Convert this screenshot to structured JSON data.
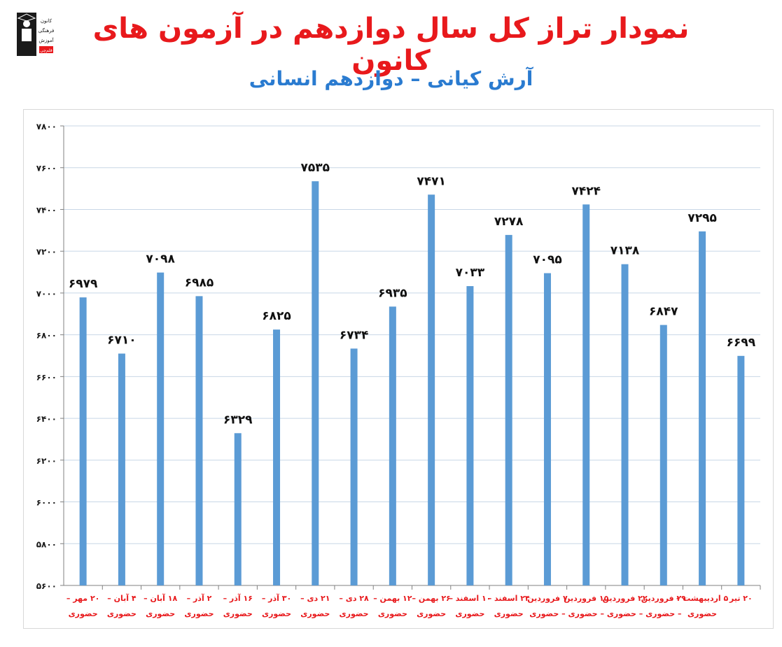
{
  "header": {
    "title": "نمودار تراز کل سال دوازدهم در آزمون های کانون",
    "subtitle": "آرش کیانی – دوازدهم انسانی",
    "logo_text": [
      "کانون",
      "فرهنگی",
      "آموزش",
      "قلم‌چی"
    ]
  },
  "colors": {
    "title": "#e8191c",
    "subtitle": "#2a7bd0",
    "bar": "#5b9bd5",
    "category_label": "#e8191c",
    "gridline": "#c8d7e6"
  },
  "chart_data": {
    "type": "bar",
    "ylim": [
      5600,
      7800
    ],
    "yticks": [
      "۵۶۰۰",
      "۵۸۰۰",
      "۶۰۰۰",
      "۶۲۰۰",
      "۶۴۰۰",
      "۶۶۰۰",
      "۶۸۰۰",
      "۷۰۰۰",
      "۷۲۰۰",
      "۷۴۰۰",
      "۷۶۰۰",
      "۷۸۰۰"
    ],
    "ytick_values": [
      5600,
      5800,
      6000,
      6200,
      6400,
      6600,
      6800,
      7000,
      7200,
      7400,
      7600,
      7800
    ],
    "grid": true,
    "categories": [
      [
        "۲۰ مهر –",
        "حضوری"
      ],
      [
        "۴ آبان –",
        "حضوری"
      ],
      [
        "۱۸ آبان –",
        "حضوری"
      ],
      [
        "۲ آذر –",
        "حضوری"
      ],
      [
        "۱۶ آذر –",
        "حضوری"
      ],
      [
        "۳۰ آذر –",
        "حضوری"
      ],
      [
        "۲۱ دی –",
        "حضوری"
      ],
      [
        "۲۸ دی –",
        "حضوری"
      ],
      [
        "۱۲ بهمن –",
        "حضوری"
      ],
      [
        "۲۶ بهمن –",
        "حضوری"
      ],
      [
        "۱۰ اسفند –",
        "حضوری"
      ],
      [
        "۲۴ اسفند –",
        "حضوری"
      ],
      [
        "۷ فروردین",
        "– حضوری"
      ],
      [
        "۱۵ فروردین",
        "– حضوری"
      ],
      [
        "۲۲ فروردین",
        "– حضوری"
      ],
      [
        "۲۹ فروردین",
        "– حضوری"
      ],
      [
        "۵ اردیبهشت –",
        "حضوری"
      ],
      [
        "۲۰ تیر",
        ""
      ]
    ],
    "values": [
      6979,
      6710,
      7098,
      6985,
      6329,
      6825,
      7535,
      6734,
      6935,
      7471,
      7033,
      7278,
      7095,
      7424,
      7138,
      6847,
      7295,
      6699
    ],
    "value_labels": [
      "۶۹۷۹",
      "۶۷۱۰",
      "۷۰۹۸",
      "۶۹۸۵",
      "۶۳۲۹",
      "۶۸۲۵",
      "۷۵۳۵",
      "۶۷۳۴",
      "۶۹۳۵",
      "۷۴۷۱",
      "۷۰۳۳",
      "۷۲۷۸",
      "۷۰۹۵",
      "۷۴۲۴",
      "۷۱۳۸",
      "۶۸۴۷",
      "۷۲۹۵",
      "۶۶۹۹"
    ]
  }
}
